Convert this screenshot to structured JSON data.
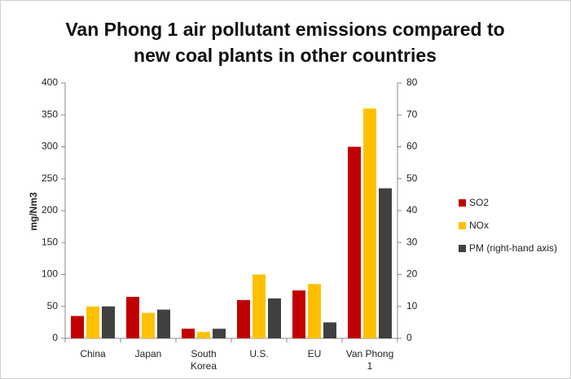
{
  "chart_data": {
    "type": "bar",
    "title": "Van Phong 1 air pollutant emissions compared to new coal plants in other countries",
    "ylabel": "mg/Nm3",
    "categories": [
      "China",
      "Japan",
      "South Korea",
      "U.S.",
      "EU",
      "Van Phong 1"
    ],
    "series": [
      {
        "name": "SO2",
        "color": "#c00000",
        "values": [
          35,
          65,
          15,
          60,
          75,
          300
        ]
      },
      {
        "name": "NOx",
        "color": "#ffc000",
        "values": [
          50,
          40,
          10,
          100,
          85,
          360
        ]
      },
      {
        "name": "PM (right-hand axis)",
        "color": "#404040",
        "axis": "y2",
        "values": [
          10,
          9,
          3,
          12.5,
          5,
          47
        ]
      }
    ],
    "ylim": [
      0,
      400
    ],
    "yticks": [
      0,
      50,
      100,
      150,
      200,
      250,
      300,
      350,
      400
    ],
    "y2lim": [
      0,
      80
    ],
    "y2ticks": [
      0,
      10,
      20,
      30,
      40,
      50,
      60,
      70,
      80
    ],
    "grid": false,
    "legend": "right"
  }
}
